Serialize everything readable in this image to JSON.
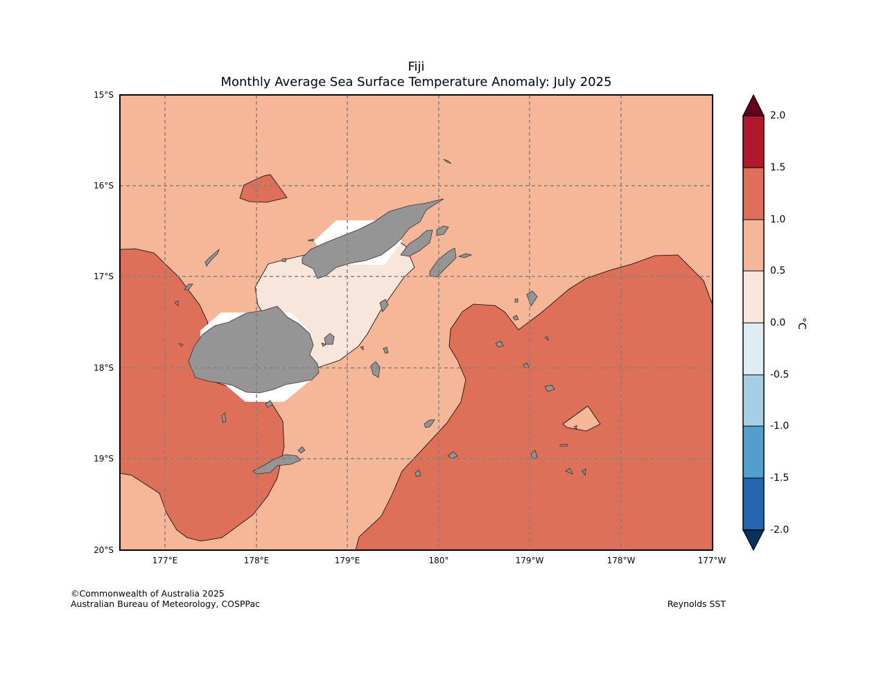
{
  "title": {
    "line1": "Fiji",
    "line2": "Monthly Average Sea Surface Temperature Anomaly: July 2025"
  },
  "axes": {
    "lat_ticks": [
      "15°S",
      "16°S",
      "17°S",
      "18°S",
      "19°S",
      "20°S"
    ],
    "lon_ticks": [
      "177°E",
      "178°E",
      "179°E",
      "180°",
      "179°W",
      "178°W",
      "177°W"
    ],
    "lat_range_deg": [
      -20,
      -15
    ],
    "lon_range_deg_east": [
      176.5,
      183
    ],
    "gridlines": true
  },
  "colorbar": {
    "unit": "°C",
    "ticks": [
      "2.0",
      "1.5",
      "1.0",
      "0.5",
      "0.0",
      "-0.5",
      "-1.0",
      "-1.5",
      "-2.0"
    ],
    "bins": [
      {
        "range": "> 2.0",
        "color": "#67001f"
      },
      {
        "range": "1.5 to 2.0",
        "color": "#b2182b"
      },
      {
        "range": "1.0 to 1.5",
        "color": "#de6f58"
      },
      {
        "range": "0.5 to 1.0",
        "color": "#f6b799"
      },
      {
        "range": "0.0 to 0.5",
        "color": "#f8e6dc"
      },
      {
        "range": "-0.5 to 0.0",
        "color": "#e0ecf3"
      },
      {
        "range": "-1.0 to -0.5",
        "color": "#a6cfe4"
      },
      {
        "range": "-1.5 to -1.0",
        "color": "#529ecd"
      },
      {
        "range": "-2.0 to -1.5",
        "color": "#2467af"
      },
      {
        "range": "< -2.0",
        "color": "#06325f"
      }
    ]
  },
  "colors": {
    "land": "#959595",
    "no_data": "#ffffff",
    "grid": "#808080"
  },
  "footer": {
    "credit_line1": "©Commonwealth of Australia 2025",
    "credit_line2": "Australian Bureau of Meteorology, COSPPac",
    "source": "Reynolds SST"
  }
}
